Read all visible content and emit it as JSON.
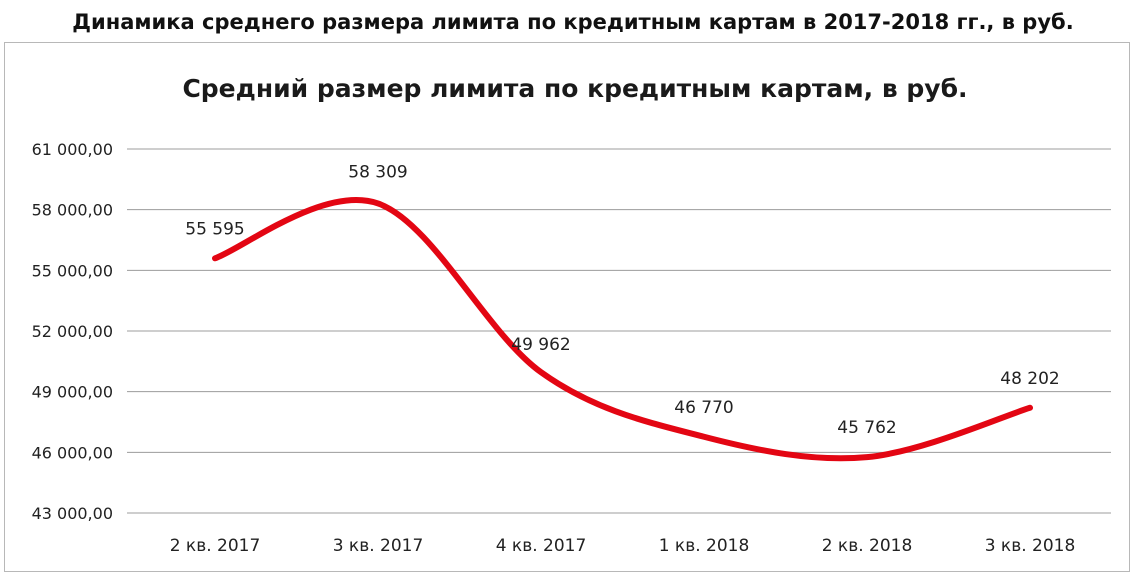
{
  "page": {
    "title": "Динамика среднего размера лимита по кредитным картам в 2017-2018 гг., в руб."
  },
  "chart_data": {
    "type": "line",
    "title": "Средний размер лимита по кредитным картам, в руб.",
    "xlabel": "",
    "ylabel": "",
    "categories": [
      "2 кв. 2017",
      "3 кв. 2017",
      "4 кв. 2017",
      "1 кв. 2018",
      "2 кв. 2018",
      "3 кв. 2018"
    ],
    "series": [
      {
        "values": [
          55595,
          58309,
          49962,
          46770,
          45762,
          48202
        ],
        "labels": [
          "55 595",
          "58 309",
          "49 962",
          "46 770",
          "45 762",
          "48 202"
        ],
        "color": "#e30613",
        "smooth": true
      }
    ],
    "ylim": [
      43000,
      61000
    ],
    "yticks": [
      43000,
      46000,
      49000,
      52000,
      55000,
      58000,
      61000
    ],
    "ytick_labels": [
      "43 000,00",
      "46 000,00",
      "49 000,00",
      "52 000,00",
      "55 000,00",
      "58 000,00",
      "61 000,00"
    ],
    "grid": true,
    "legend": "none"
  }
}
